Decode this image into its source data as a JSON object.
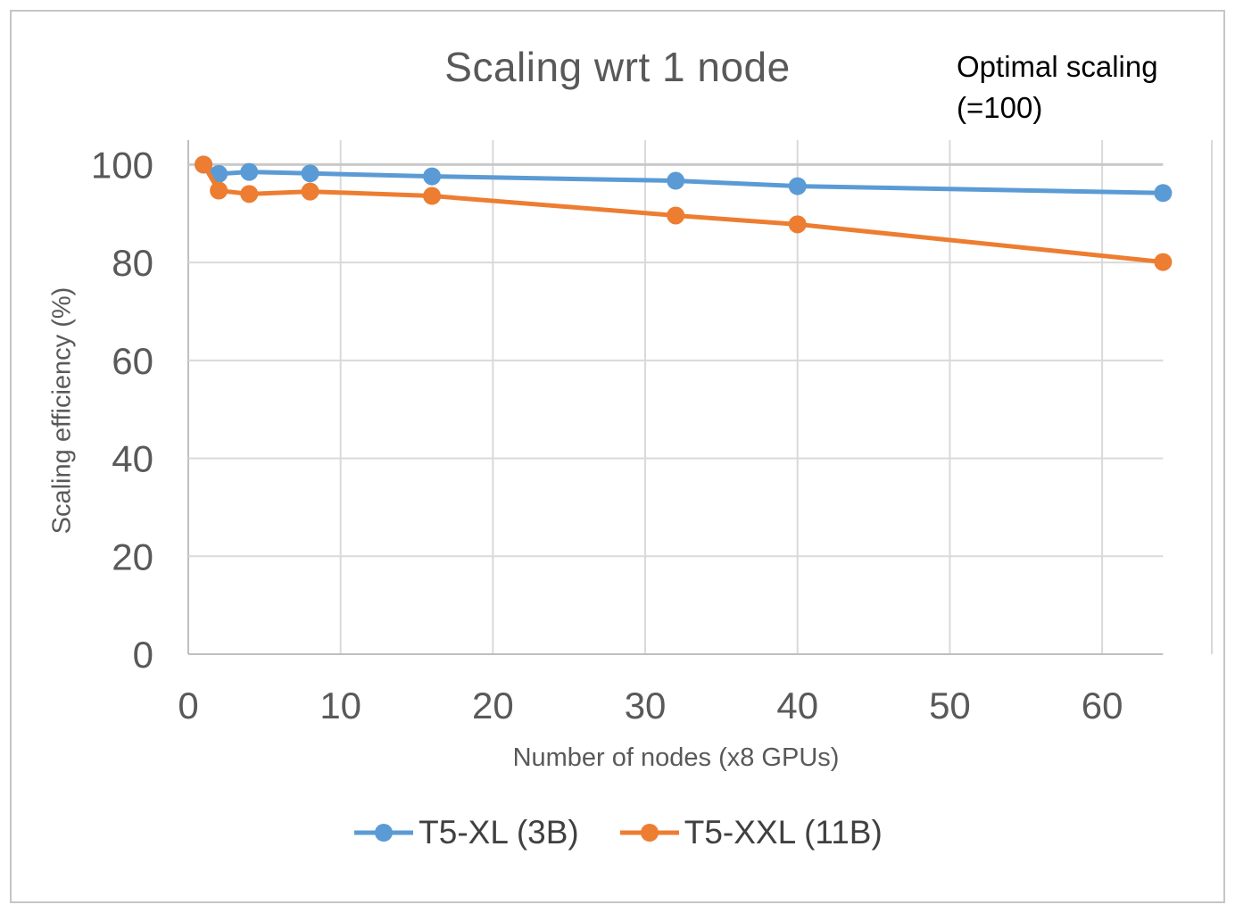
{
  "chart_data": {
    "type": "line",
    "title": "Scaling wrt 1 node",
    "annotation": "Optimal scaling\n(=100)",
    "xlabel": "Number of nodes (x8 GPUs)",
    "ylabel": "Scaling efficiency (%)",
    "x": [
      1,
      2,
      4,
      8,
      16,
      32,
      40,
      64
    ],
    "series": [
      {
        "name": "T5-XL (3B)",
        "color": "#5B9BD5",
        "values": [
          100,
          98.1,
          98.5,
          98.2,
          97.6,
          96.7,
          95.6,
          94.2
        ]
      },
      {
        "name": "T5-XXL (11B)",
        "color": "#ED7D31",
        "values": [
          100,
          94.7,
          94.0,
          94.5,
          93.6,
          89.6,
          87.8,
          80.1
        ]
      }
    ],
    "reference_line": {
      "label": "Optimal scaling (=100)",
      "value": 100,
      "x_start": 0,
      "x_end": 64,
      "color": "#C9C9C9"
    },
    "x_ticks": [
      0,
      10,
      20,
      30,
      40,
      50,
      60
    ],
    "y_ticks": [
      0,
      20,
      40,
      60,
      80,
      100
    ],
    "xlim": [
      0,
      67.2
    ],
    "ylim": [
      0,
      105
    ],
    "grid": true,
    "legend_position": "bottom",
    "colors": {
      "axis_text": "#595959",
      "title_text": "#595959",
      "legend_text": "#404040",
      "gridline": "#D9D9D9",
      "axis_line": "#BFBFBF",
      "annotation_text": "#000000",
      "frame_border": "#C6C6C6"
    }
  }
}
